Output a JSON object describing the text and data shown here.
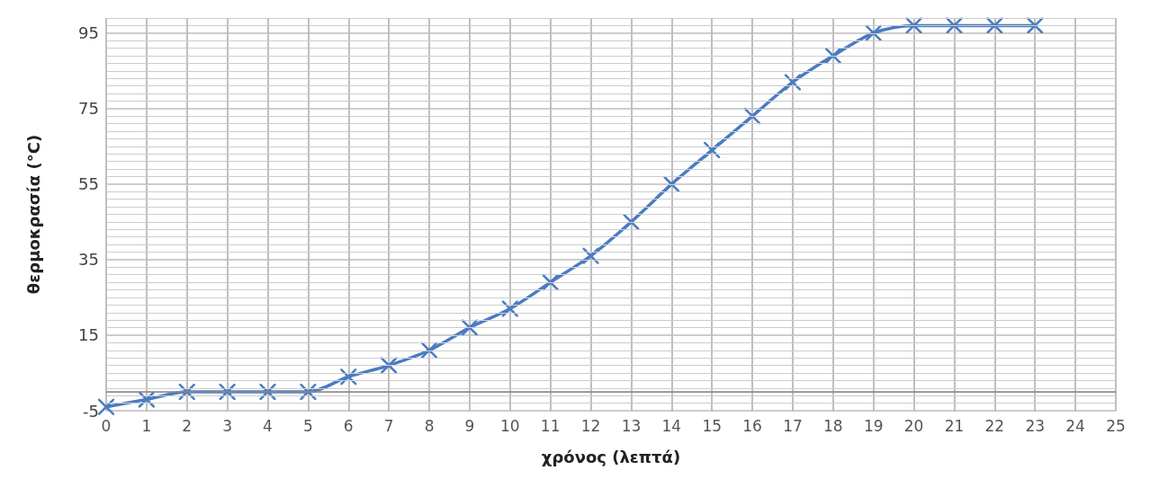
{
  "chart_data": {
    "type": "line",
    "xlabel": "χρόνος (λεπτά)",
    "ylabel": "θερμοκρασία (°C)",
    "x": [
      0,
      1,
      2,
      3,
      4,
      5,
      6,
      7,
      8,
      9,
      10,
      11,
      12,
      13,
      14,
      15,
      16,
      17,
      18,
      19,
      20,
      21,
      22,
      23
    ],
    "series": [
      {
        "color": "#4a7bc4",
        "values": [
          -4,
          -2,
          0,
          0,
          0,
          0,
          4,
          7,
          11,
          17,
          22,
          29,
          36,
          45,
          55,
          64,
          73,
          82,
          89,
          95,
          97,
          97,
          97,
          97
        ]
      }
    ],
    "xlim": [
      0,
      25
    ],
    "xticks": [
      0,
      1,
      2,
      3,
      4,
      5,
      6,
      7,
      8,
      9,
      10,
      11,
      12,
      13,
      14,
      15,
      16,
      17,
      18,
      19,
      20,
      21,
      22,
      23,
      24,
      25
    ],
    "ylim": [
      -5,
      99
    ],
    "yticks": [
      -5,
      15,
      35,
      55,
      75,
      95
    ],
    "ref_lines": [
      {
        "axis": "y",
        "value": 0,
        "color": "#8c8c8c"
      }
    ],
    "grid": true,
    "marker": "cross",
    "line_style": "solid"
  }
}
